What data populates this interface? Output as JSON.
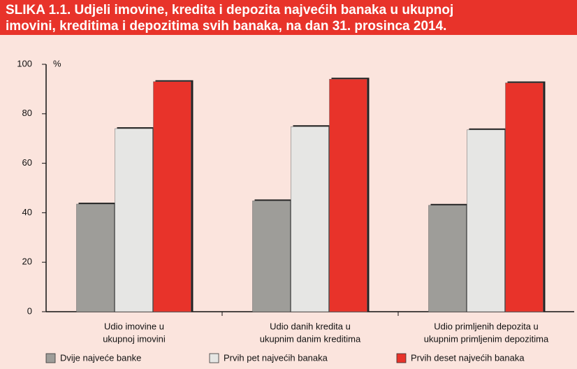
{
  "chart_data": {
    "type": "bar",
    "title": [
      "SLIKA 1.1. Udjeli imovine, kredita i depozita najvećih banaka u ukupnoj",
      "imovini, kreditima i depozitima svih banaka, na dan 31. prosinca 2014."
    ],
    "y_unit": "%",
    "categories": [
      [
        "Udio imovine u",
        "ukupnoj imovini"
      ],
      [
        "Udio danih kredita u",
        "ukupnim danim kreditima"
      ],
      [
        "Udio primljenih depozita u",
        "ukupnim primljenim depozitima"
      ]
    ],
    "series": [
      {
        "name": "Dvije najveće banke",
        "color": "#9e9d99",
        "values": [
          43.5,
          44.8,
          43
        ]
      },
      {
        "name": "Prvih pet najvećih banaka",
        "color": "#e6e6e4",
        "values": [
          74,
          74.8,
          73.5
        ]
      },
      {
        "name": "Prvih deset najvećih banaka",
        "color": "#e8332a",
        "values": [
          93,
          94,
          92.5
        ]
      }
    ],
    "ylim": [
      0,
      100
    ],
    "yticks": [
      0,
      20,
      40,
      60,
      80,
      100
    ]
  }
}
